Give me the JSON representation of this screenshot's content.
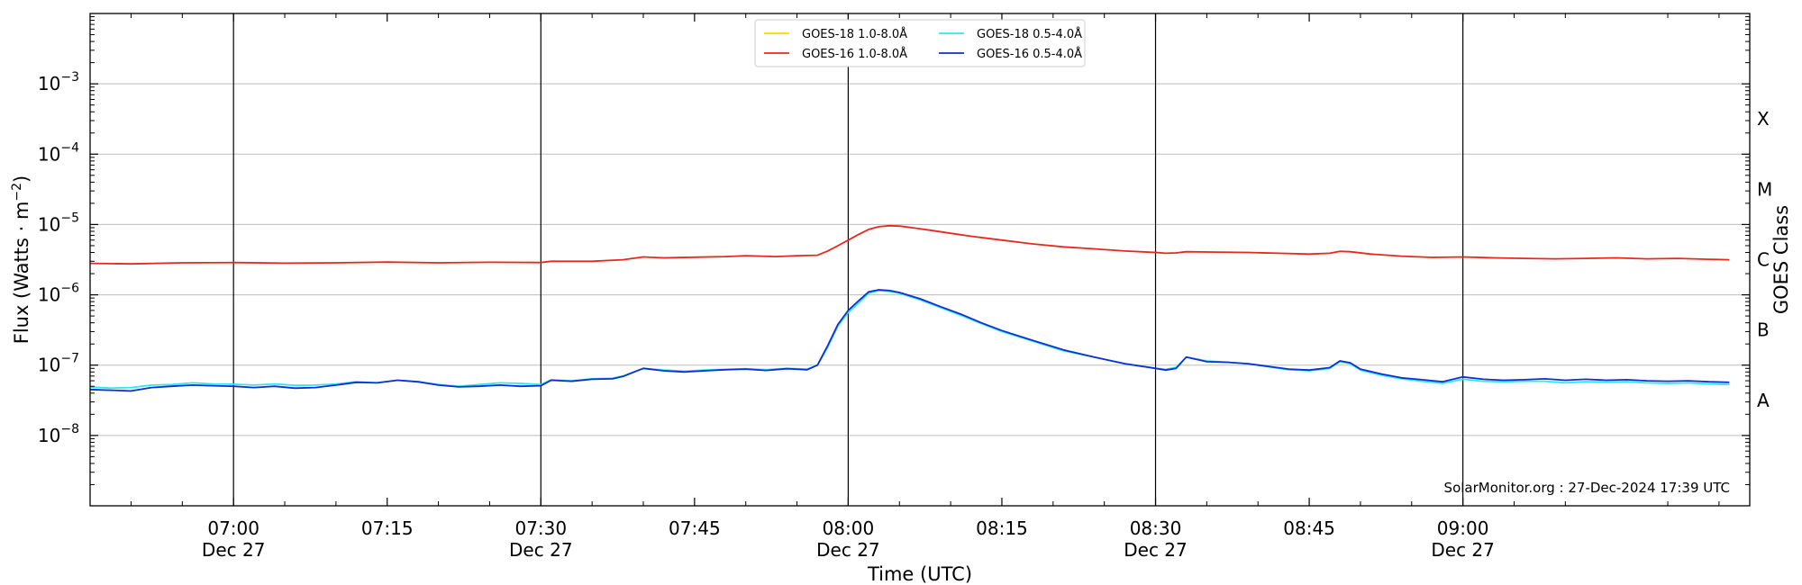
{
  "chart_data": {
    "type": "line",
    "title": "",
    "xlabel": "Time (UTC)",
    "ylabel_main": "Flux (Watts · m",
    "ylabel_sup": "−2",
    "ylabel_end": ")",
    "y2label": "GOES Class",
    "yscale": "log",
    "ylim": [
      1e-09,
      0.01
    ],
    "xlim": [
      "06:46",
      "09:28"
    ],
    "x_ticks": [
      {
        "time": "07:00",
        "label": "07:00",
        "date": "Dec 27"
      },
      {
        "time": "07:15",
        "label": "07:15",
        "date": ""
      },
      {
        "time": "07:30",
        "label": "07:30",
        "date": "Dec 27"
      },
      {
        "time": "07:45",
        "label": "07:45",
        "date": ""
      },
      {
        "time": "08:00",
        "label": "08:00",
        "date": "Dec 27"
      },
      {
        "time": "08:15",
        "label": "08:15",
        "date": ""
      },
      {
        "time": "08:30",
        "label": "08:30",
        "date": "Dec 27"
      },
      {
        "time": "08:45",
        "label": "08:45",
        "date": ""
      },
      {
        "time": "09:00",
        "label": "09:00",
        "date": "Dec 27"
      }
    ],
    "y_ticks": [
      {
        "value": 1e-08,
        "base": "10",
        "exp": "−8"
      },
      {
        "value": 1e-07,
        "base": "10",
        "exp": "−7"
      },
      {
        "value": 1e-06,
        "base": "10",
        "exp": "−6"
      },
      {
        "value": 1e-05,
        "base": "10",
        "exp": "−5"
      },
      {
        "value": 0.0001,
        "base": "10",
        "exp": "−4"
      },
      {
        "value": 0.001,
        "base": "10",
        "exp": "−3"
      }
    ],
    "class_labels": [
      {
        "label": "A",
        "value": 3.16e-08
      },
      {
        "label": "B",
        "value": 3.16e-07
      },
      {
        "label": "C",
        "value": 3.16e-06
      },
      {
        "label": "M",
        "value": 3.16e-05
      },
      {
        "label": "X",
        "value": 0.000316
      }
    ],
    "grid": true,
    "legend_position": "top-center",
    "credit": "SolarMonitor.org : 27-Dec-2024 17:39 UTC",
    "series": [
      {
        "name": "GOES-18 1.0-8.0Å",
        "color": "#ffd700",
        "legend_order": 0,
        "points": []
      },
      {
        "name": "GOES-16 1.0-8.0Å",
        "color": "#e8281c",
        "legend_order": 1,
        "points": [
          [
            "06:46",
            2.8e-06
          ],
          [
            "06:50",
            2.75e-06
          ],
          [
            "06:55",
            2.85e-06
          ],
          [
            "07:00",
            2.88e-06
          ],
          [
            "07:05",
            2.82e-06
          ],
          [
            "07:10",
            2.85e-06
          ],
          [
            "07:15",
            2.92e-06
          ],
          [
            "07:20",
            2.85e-06
          ],
          [
            "07:25",
            2.9e-06
          ],
          [
            "07:30",
            2.88e-06
          ],
          [
            "07:31",
            3e-06
          ],
          [
            "07:35",
            3e-06
          ],
          [
            "07:38",
            3.15e-06
          ],
          [
            "07:40",
            3.45e-06
          ],
          [
            "07:42",
            3.35e-06
          ],
          [
            "07:45",
            3.42e-06
          ],
          [
            "07:48",
            3.5e-06
          ],
          [
            "07:50",
            3.6e-06
          ],
          [
            "07:53",
            3.5e-06
          ],
          [
            "07:55",
            3.6e-06
          ],
          [
            "07:57",
            3.65e-06
          ],
          [
            "07:58",
            4.2e-06
          ],
          [
            "07:59",
            5e-06
          ],
          [
            "08:00",
            6e-06
          ],
          [
            "08:01",
            7.2e-06
          ],
          [
            "08:02",
            8.5e-06
          ],
          [
            "08:03",
            9.3e-06
          ],
          [
            "08:04",
            9.6e-06
          ],
          [
            "08:05",
            9.5e-06
          ],
          [
            "08:06",
            9.1e-06
          ],
          [
            "08:08",
            8.3e-06
          ],
          [
            "08:10",
            7.5e-06
          ],
          [
            "08:12",
            6.8e-06
          ],
          [
            "08:15",
            6e-06
          ],
          [
            "08:18",
            5.3e-06
          ],
          [
            "08:21",
            4.8e-06
          ],
          [
            "08:24",
            4.5e-06
          ],
          [
            "08:27",
            4.2e-06
          ],
          [
            "08:30",
            4e-06
          ],
          [
            "08:31",
            3.9e-06
          ],
          [
            "08:32",
            3.95e-06
          ],
          [
            "08:33",
            4.1e-06
          ],
          [
            "08:36",
            4.05e-06
          ],
          [
            "08:39",
            4e-06
          ],
          [
            "08:42",
            3.9e-06
          ],
          [
            "08:45",
            3.8e-06
          ],
          [
            "08:47",
            3.9e-06
          ],
          [
            "08:48",
            4.15e-06
          ],
          [
            "08:49",
            4.1e-06
          ],
          [
            "08:51",
            3.8e-06
          ],
          [
            "08:54",
            3.55e-06
          ],
          [
            "08:57",
            3.4e-06
          ],
          [
            "09:00",
            3.45e-06
          ],
          [
            "09:03",
            3.35e-06
          ],
          [
            "09:06",
            3.3e-06
          ],
          [
            "09:09",
            3.25e-06
          ],
          [
            "09:12",
            3.3e-06
          ],
          [
            "09:15",
            3.35e-06
          ],
          [
            "09:18",
            3.25e-06
          ],
          [
            "09:21",
            3.3e-06
          ],
          [
            "09:24",
            3.2e-06
          ],
          [
            "09:26",
            3.15e-06
          ]
        ]
      },
      {
        "name": "GOES-18 0.5-4.0Å",
        "color": "#2ee8ee",
        "legend_order": 2,
        "points": [
          [
            "06:46",
            4.9e-08
          ],
          [
            "06:48",
            4.7e-08
          ],
          [
            "06:50",
            4.8e-08
          ],
          [
            "06:52",
            5.2e-08
          ],
          [
            "06:54",
            5.3e-08
          ],
          [
            "06:56",
            5.6e-08
          ],
          [
            "06:58",
            5.4e-08
          ],
          [
            "07:00",
            5.35e-08
          ],
          [
            "07:02",
            5.2e-08
          ],
          [
            "07:04",
            5.4e-08
          ],
          [
            "07:06",
            5.15e-08
          ],
          [
            "07:08",
            5.2e-08
          ],
          [
            "07:10",
            5.4e-08
          ],
          [
            "07:12",
            5.8e-08
          ],
          [
            "07:14",
            5.6e-08
          ],
          [
            "07:16",
            6.1e-08
          ],
          [
            "07:18",
            5.8e-08
          ],
          [
            "07:20",
            5.3e-08
          ],
          [
            "07:22",
            5e-08
          ],
          [
            "07:24",
            5.3e-08
          ],
          [
            "07:26",
            5.6e-08
          ],
          [
            "07:28",
            5.5e-08
          ],
          [
            "07:30",
            5.3e-08
          ],
          [
            "07:31",
            6.2e-08
          ],
          [
            "07:33",
            6e-08
          ],
          [
            "07:35",
            6.4e-08
          ],
          [
            "07:37",
            6.5e-08
          ],
          [
            "07:38",
            7e-08
          ],
          [
            "07:40",
            9e-08
          ],
          [
            "07:42",
            8.5e-08
          ],
          [
            "07:44",
            8.2e-08
          ],
          [
            "07:46",
            8.5e-08
          ],
          [
            "07:48",
            8.7e-08
          ],
          [
            "07:50",
            8.9e-08
          ],
          [
            "07:52",
            8.6e-08
          ],
          [
            "07:54",
            9e-08
          ],
          [
            "07:56",
            8.8e-08
          ],
          [
            "07:57",
            1e-07
          ],
          [
            "07:58",
            1.8e-07
          ],
          [
            "07:59",
            3.6e-07
          ],
          [
            "08:00",
            5.6e-07
          ],
          [
            "08:01",
            7.6e-07
          ],
          [
            "08:02",
            1.05e-06
          ],
          [
            "08:03",
            1.15e-06
          ],
          [
            "08:04",
            1.12e-06
          ],
          [
            "08:05",
            1.05e-06
          ],
          [
            "08:07",
            8.5e-07
          ],
          [
            "08:09",
            6.6e-07
          ],
          [
            "08:11",
            5.1e-07
          ],
          [
            "08:13",
            3.9e-07
          ],
          [
            "08:15",
            3e-07
          ],
          [
            "08:18",
            2.2e-07
          ],
          [
            "08:21",
            1.6e-07
          ],
          [
            "08:24",
            1.3e-07
          ],
          [
            "08:27",
            1.05e-07
          ],
          [
            "08:30",
            9e-08
          ],
          [
            "08:31",
            8.7e-08
          ],
          [
            "08:32",
            9.3e-08
          ],
          [
            "08:33",
            1.3e-07
          ],
          [
            "08:35",
            1.15e-07
          ],
          [
            "08:37",
            1.1e-07
          ],
          [
            "08:39",
            1.05e-07
          ],
          [
            "08:41",
            9.5e-08
          ],
          [
            "08:43",
            8.6e-08
          ],
          [
            "08:45",
            8.3e-08
          ],
          [
            "08:47",
            9e-08
          ],
          [
            "08:48",
            1.12e-07
          ],
          [
            "08:49",
            1.05e-07
          ],
          [
            "08:50",
            8.5e-08
          ],
          [
            "08:52",
            7.2e-08
          ],
          [
            "08:54",
            6.4e-08
          ],
          [
            "08:56",
            5.9e-08
          ],
          [
            "08:58",
            5.5e-08
          ],
          [
            "09:00",
            6.3e-08
          ],
          [
            "09:02",
            5.9e-08
          ],
          [
            "09:04",
            5.8e-08
          ],
          [
            "09:06",
            5.9e-08
          ],
          [
            "09:08",
            5.9e-08
          ],
          [
            "09:10",
            5.6e-08
          ],
          [
            "09:12",
            5.8e-08
          ],
          [
            "09:14",
            5.7e-08
          ],
          [
            "09:16",
            5.8e-08
          ],
          [
            "09:18",
            5.6e-08
          ],
          [
            "09:20",
            5.5e-08
          ],
          [
            "09:22",
            5.6e-08
          ],
          [
            "09:24",
            5.4e-08
          ],
          [
            "09:26",
            5.3e-08
          ]
        ]
      },
      {
        "name": "GOES-16 0.5-4.0Å",
        "color": "#0f2fd6",
        "legend_order": 3,
        "points": [
          [
            "06:46",
            4.5e-08
          ],
          [
            "06:48",
            4.4e-08
          ],
          [
            "06:50",
            4.3e-08
          ],
          [
            "06:52",
            4.8e-08
          ],
          [
            "06:54",
            5e-08
          ],
          [
            "06:56",
            5.2e-08
          ],
          [
            "06:58",
            5.1e-08
          ],
          [
            "07:00",
            5e-08
          ],
          [
            "07:02",
            4.8e-08
          ],
          [
            "07:04",
            5e-08
          ],
          [
            "07:06",
            4.7e-08
          ],
          [
            "07:08",
            4.8e-08
          ],
          [
            "07:10",
            5.2e-08
          ],
          [
            "07:12",
            5.7e-08
          ],
          [
            "07:14",
            5.6e-08
          ],
          [
            "07:16",
            6.1e-08
          ],
          [
            "07:18",
            5.8e-08
          ],
          [
            "07:20",
            5.2e-08
          ],
          [
            "07:22",
            4.9e-08
          ],
          [
            "07:24",
            5e-08
          ],
          [
            "07:26",
            5.2e-08
          ],
          [
            "07:28",
            5e-08
          ],
          [
            "07:30",
            5.1e-08
          ],
          [
            "07:31",
            6.1e-08
          ],
          [
            "07:33",
            5.9e-08
          ],
          [
            "07:35",
            6.3e-08
          ],
          [
            "07:37",
            6.4e-08
          ],
          [
            "07:38",
            6.9e-08
          ],
          [
            "07:40",
            9e-08
          ],
          [
            "07:42",
            8.3e-08
          ],
          [
            "07:44",
            8e-08
          ],
          [
            "07:46",
            8.3e-08
          ],
          [
            "07:48",
            8.6e-08
          ],
          [
            "07:50",
            8.8e-08
          ],
          [
            "07:52",
            8.4e-08
          ],
          [
            "07:54",
            8.9e-08
          ],
          [
            "07:56",
            8.6e-08
          ],
          [
            "07:57",
            1e-07
          ],
          [
            "07:58",
            1.9e-07
          ],
          [
            "07:59",
            3.8e-07
          ],
          [
            "08:00",
            6e-07
          ],
          [
            "08:01",
            8.2e-07
          ],
          [
            "08:02",
            1.1e-06
          ],
          [
            "08:03",
            1.18e-06
          ],
          [
            "08:04",
            1.15e-06
          ],
          [
            "08:05",
            1.08e-06
          ],
          [
            "08:07",
            8.8e-07
          ],
          [
            "08:09",
            6.8e-07
          ],
          [
            "08:11",
            5.3e-07
          ],
          [
            "08:13",
            4e-07
          ],
          [
            "08:15",
            3.1e-07
          ],
          [
            "08:18",
            2.25e-07
          ],
          [
            "08:21",
            1.65e-07
          ],
          [
            "08:24",
            1.3e-07
          ],
          [
            "08:27",
            1.05e-07
          ],
          [
            "08:30",
            9e-08
          ],
          [
            "08:31",
            8.5e-08
          ],
          [
            "08:32",
            9e-08
          ],
          [
            "08:33",
            1.3e-07
          ],
          [
            "08:35",
            1.12e-07
          ],
          [
            "08:37",
            1.1e-07
          ],
          [
            "08:39",
            1.05e-07
          ],
          [
            "08:41",
            9.6e-08
          ],
          [
            "08:43",
            8.8e-08
          ],
          [
            "08:45",
            8.5e-08
          ],
          [
            "08:47",
            9.2e-08
          ],
          [
            "08:48",
            1.15e-07
          ],
          [
            "08:49",
            1.08e-07
          ],
          [
            "08:50",
            8.8e-08
          ],
          [
            "08:52",
            7.5e-08
          ],
          [
            "08:54",
            6.6e-08
          ],
          [
            "08:56",
            6.2e-08
          ],
          [
            "08:58",
            5.8e-08
          ],
          [
            "09:00",
            6.8e-08
          ],
          [
            "09:02",
            6.3e-08
          ],
          [
            "09:04",
            6.1e-08
          ],
          [
            "09:06",
            6.2e-08
          ],
          [
            "09:08",
            6.4e-08
          ],
          [
            "09:10",
            6.1e-08
          ],
          [
            "09:12",
            6.3e-08
          ],
          [
            "09:14",
            6.1e-08
          ],
          [
            "09:16",
            6.2e-08
          ],
          [
            "09:18",
            6e-08
          ],
          [
            "09:20",
            5.9e-08
          ],
          [
            "09:22",
            6e-08
          ],
          [
            "09:24",
            5.8e-08
          ],
          [
            "09:26",
            5.7e-08
          ]
        ]
      }
    ]
  }
}
